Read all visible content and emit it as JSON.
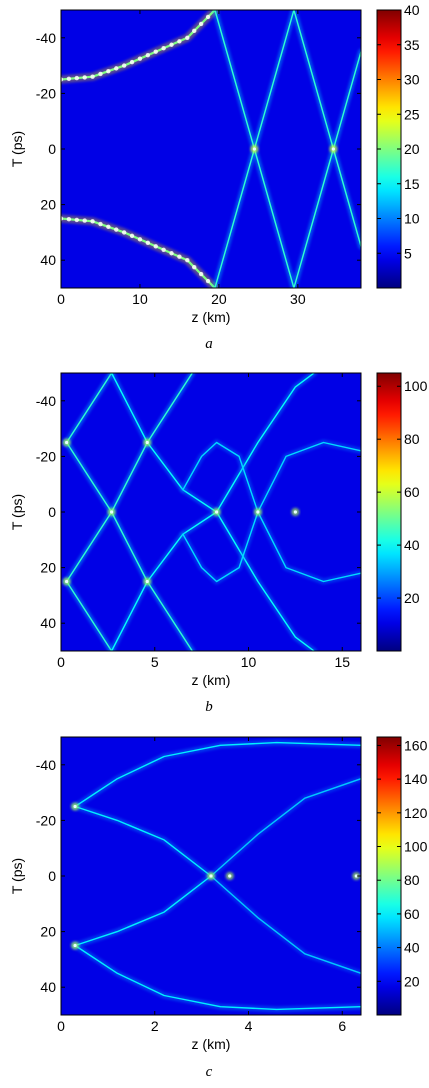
{
  "chart_data": [
    {
      "type": "heatmap",
      "caption": "a",
      "xlabel": "z (km)",
      "ylabel": "T (ps)",
      "xlim": [
        0,
        38
      ],
      "ylim": [
        -50,
        50
      ],
      "y_reversed": true,
      "xticks": [
        0,
        10,
        20,
        30
      ],
      "yticks": [
        -40,
        -20,
        0,
        20,
        40
      ],
      "colorbar": {
        "min": 0,
        "max": 40,
        "ticks": [
          5,
          10,
          15,
          20,
          25,
          30,
          35,
          40
        ]
      },
      "colormap": "jet",
      "features": [
        {
          "kind": "pulse_track",
          "points": [
            [
              0,
              -25
            ],
            [
              4,
              -26
            ],
            [
              8,
              -30
            ],
            [
              12,
              -35
            ],
            [
              16,
              -40
            ],
            [
              19.5,
              -50
            ]
          ],
          "intensity": 0.55
        },
        {
          "kind": "pulse_track",
          "points": [
            [
              0,
              25
            ],
            [
              4,
              26
            ],
            [
              8,
              30
            ],
            [
              12,
              35
            ],
            [
              16,
              40
            ],
            [
              19.5,
              50
            ]
          ],
          "intensity": 0.55
        },
        {
          "kind": "line",
          "points": [
            [
              19.5,
              -50
            ],
            [
              24.5,
              0
            ],
            [
              29.5,
              50
            ],
            [
              34.5,
              0
            ],
            [
              38,
              -35
            ]
          ],
          "intensity": 0.22
        },
        {
          "kind": "line",
          "points": [
            [
              19.5,
              50
            ],
            [
              24.5,
              0
            ],
            [
              29.5,
              -50
            ],
            [
              34.5,
              0
            ],
            [
              38,
              35
            ]
          ],
          "intensity": 0.22
        },
        {
          "kind": "spot",
          "points": [
            [
              24.5,
              0
            ],
            [
              34.5,
              0
            ]
          ],
          "intensity": 0.35
        }
      ]
    },
    {
      "type": "heatmap",
      "caption": "b",
      "xlabel": "z (km)",
      "ylabel": "T (ps)",
      "xlim": [
        0,
        16
      ],
      "ylim": [
        -50,
        50
      ],
      "y_reversed": true,
      "xticks": [
        0,
        5,
        10,
        15
      ],
      "yticks": [
        -40,
        -20,
        0,
        20,
        40
      ],
      "colorbar": {
        "min": 0,
        "max": 105,
        "ticks": [
          20,
          40,
          60,
          80,
          100
        ]
      },
      "colormap": "jet",
      "features": [
        {
          "kind": "line",
          "points": [
            [
              0.3,
              -25
            ],
            [
              2.7,
              -50
            ]
          ],
          "intensity": 0.22
        },
        {
          "kind": "line",
          "points": [
            [
              0.3,
              -25
            ],
            [
              2.7,
              0
            ],
            [
              4.6,
              25
            ],
            [
              7,
              50
            ]
          ],
          "intensity": 0.22
        },
        {
          "kind": "line",
          "points": [
            [
              0.3,
              25
            ],
            [
              2.7,
              0
            ],
            [
              4.6,
              -25
            ],
            [
              7,
              -50
            ]
          ],
          "intensity": 0.22
        },
        {
          "kind": "line",
          "points": [
            [
              0.3,
              25
            ],
            [
              2.7,
              50
            ]
          ],
          "intensity": 0.22
        },
        {
          "kind": "line",
          "points": [
            [
              2.7,
              -50
            ],
            [
              4.6,
              -25
            ],
            [
              6.5,
              -8
            ],
            [
              8.3,
              0
            ],
            [
              10.5,
              25
            ],
            [
              12.5,
              45
            ],
            [
              13.5,
              50
            ]
          ],
          "intensity": 0.18
        },
        {
          "kind": "line",
          "points": [
            [
              2.7,
              50
            ],
            [
              4.6,
              25
            ],
            [
              6.5,
              8
            ],
            [
              8.3,
              0
            ],
            [
              10.5,
              -25
            ],
            [
              12.5,
              -45
            ],
            [
              13.5,
              -50
            ]
          ],
          "intensity": 0.18
        },
        {
          "kind": "line",
          "points": [
            [
              6.5,
              -8
            ],
            [
              7.5,
              -20
            ],
            [
              8.3,
              -25
            ],
            [
              9.5,
              -20
            ],
            [
              10.5,
              0
            ],
            [
              12,
              20
            ],
            [
              14,
              25
            ],
            [
              16,
              22
            ]
          ],
          "intensity": 0.14
        },
        {
          "kind": "line",
          "points": [
            [
              6.5,
              8
            ],
            [
              7.5,
              20
            ],
            [
              8.3,
              25
            ],
            [
              9.5,
              20
            ],
            [
              10.5,
              0
            ],
            [
              12,
              -20
            ],
            [
              14,
              -25
            ],
            [
              16,
              -22
            ]
          ],
          "intensity": 0.14
        },
        {
          "kind": "spot",
          "points": [
            [
              0.3,
              -25
            ],
            [
              0.3,
              25
            ],
            [
              2.7,
              0
            ],
            [
              4.6,
              -25
            ],
            [
              4.6,
              25
            ],
            [
              8.3,
              0
            ],
            [
              10.5,
              0
            ],
            [
              12.5,
              0
            ]
          ],
          "intensity": 0.3
        }
      ]
    },
    {
      "type": "heatmap",
      "caption": "c",
      "xlabel": "z (km)",
      "ylabel": "T (ps)",
      "xlim": [
        0,
        6.4
      ],
      "ylim": [
        -50,
        50
      ],
      "y_reversed": true,
      "xticks": [
        0,
        2,
        4,
        6
      ],
      "yticks": [
        -40,
        -20,
        0,
        20,
        40
      ],
      "colorbar": {
        "min": 0,
        "max": 165,
        "ticks": [
          20,
          40,
          60,
          80,
          100,
          120,
          140,
          160
        ]
      },
      "colormap": "jet",
      "features": [
        {
          "kind": "line",
          "points": [
            [
              0.3,
              -25
            ],
            [
              1.2,
              -35
            ],
            [
              2.2,
              -43
            ],
            [
              3.4,
              -47
            ],
            [
              4.6,
              -48
            ],
            [
              6.4,
              -47
            ]
          ],
          "intensity": 0.16
        },
        {
          "kind": "line",
          "points": [
            [
              0.3,
              -25
            ],
            [
              1.2,
              -20
            ],
            [
              2.2,
              -13
            ],
            [
              3.2,
              0
            ]
          ],
          "intensity": 0.16
        },
        {
          "kind": "line",
          "points": [
            [
              0.3,
              25
            ],
            [
              1.2,
              35
            ],
            [
              2.2,
              43
            ],
            [
              3.4,
              47
            ],
            [
              4.6,
              48
            ],
            [
              6.4,
              47
            ]
          ],
          "intensity": 0.16
        },
        {
          "kind": "line",
          "points": [
            [
              0.3,
              25
            ],
            [
              1.2,
              20
            ],
            [
              2.2,
              13
            ],
            [
              3.2,
              0
            ]
          ],
          "intensity": 0.16
        },
        {
          "kind": "line",
          "points": [
            [
              3.2,
              0
            ],
            [
              4.2,
              -15
            ],
            [
              5.2,
              -28
            ],
            [
              6.4,
              -35
            ]
          ],
          "intensity": 0.12
        },
        {
          "kind": "line",
          "points": [
            [
              3.2,
              0
            ],
            [
              4.2,
              15
            ],
            [
              5.2,
              28
            ],
            [
              6.4,
              35
            ]
          ],
          "intensity": 0.12
        },
        {
          "kind": "spot",
          "points": [
            [
              0.3,
              -25
            ],
            [
              0.3,
              25
            ],
            [
              3.2,
              0
            ],
            [
              3.6,
              0
            ],
            [
              6.3,
              0
            ]
          ],
          "intensity": 0.3
        }
      ]
    }
  ]
}
